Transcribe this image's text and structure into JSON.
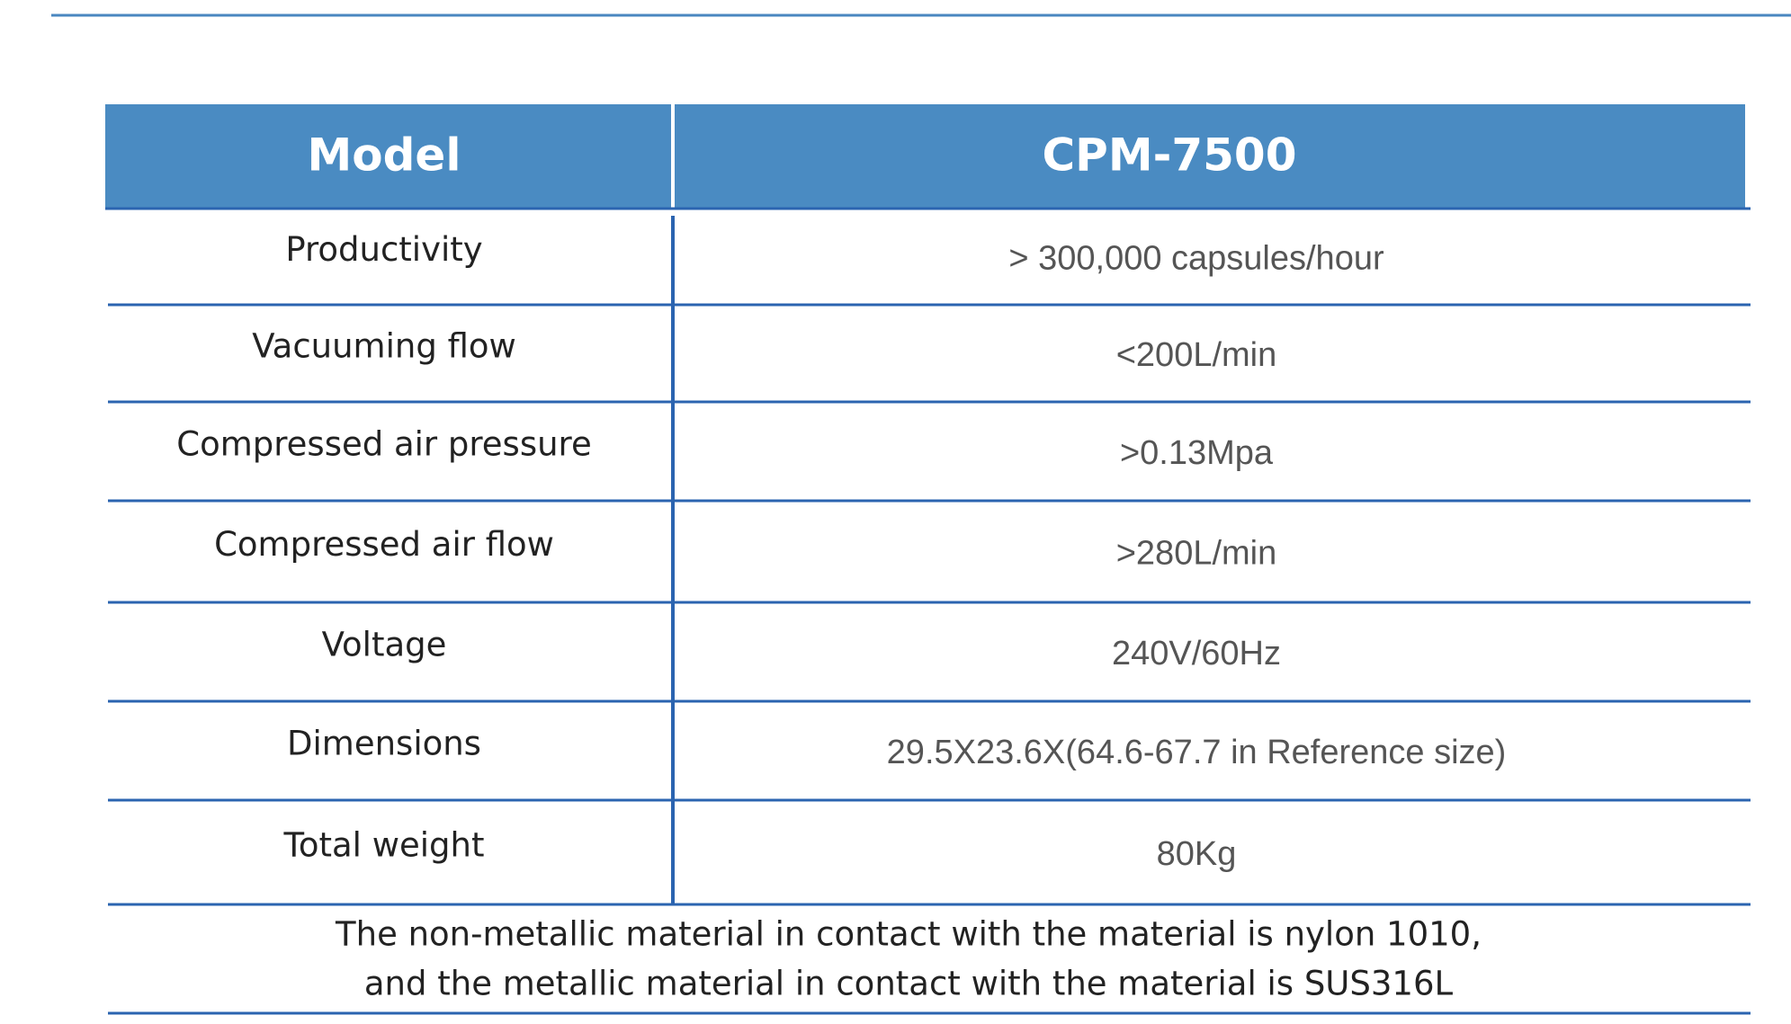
{
  "table": {
    "header": [
      "Model",
      "CPM-7500"
    ],
    "rows": [
      [
        "Productivity",
        "> 300,000 capsules/hour"
      ],
      [
        "Vacuuming flow",
        "<200L/min"
      ],
      [
        "Compressed air pressure",
        ">0.13Mpa"
      ],
      [
        "Compressed air flow",
        ">280L/min"
      ],
      [
        "Voltage",
        "240V/60Hz"
      ],
      [
        "Dimensions",
        "29.5X23.6X(64.6-67.7 in Reference size)"
      ],
      [
        "Total weight",
        "80Kg"
      ]
    ],
    "note": [
      "The non-metallic material in contact with the material is nylon 1010,",
      "and the metallic material in contact with the material is SUS316L"
    ]
  }
}
